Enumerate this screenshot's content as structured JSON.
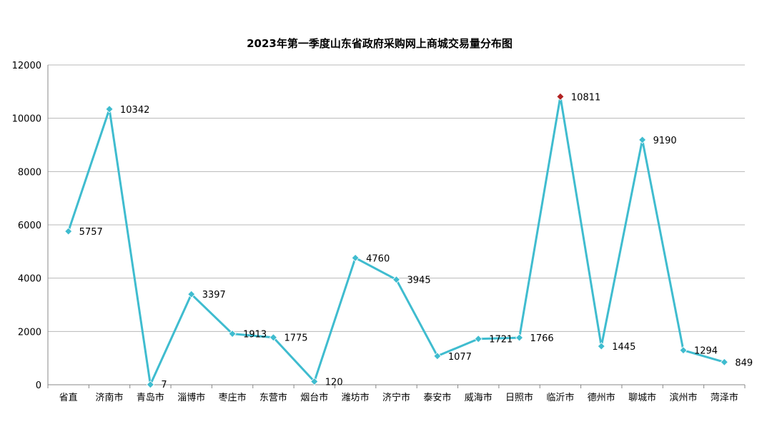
{
  "chart_data": {
    "type": "line",
    "title": "2023年第一季度山东省政府采购网上商城交易量分布图",
    "xlabel": "",
    "ylabel": "",
    "ylim": [
      0,
      12000
    ],
    "yticks": [
      0,
      2000,
      4000,
      6000,
      8000,
      10000,
      12000
    ],
    "grid": true,
    "legend": "none",
    "categories": [
      "省直",
      "济南市",
      "青岛市",
      "淄博市",
      "枣庄市",
      "东营市",
      "烟台市",
      "潍坊市",
      "济宁市",
      "泰安市",
      "威海市",
      "日照市",
      "临沂市",
      "德州市",
      "聊城市",
      "滨州市",
      "菏泽市"
    ],
    "series": [
      {
        "values": [
          5757,
          10342,
          7,
          3397,
          1913,
          1775,
          120,
          4760,
          3945,
          1077,
          1721,
          1766,
          10811,
          1445,
          9190,
          1294,
          849
        ],
        "data_labels": [
          "5757",
          "10342",
          "7",
          "3397",
          "1913",
          "1775",
          "120",
          "4760",
          "3945",
          "1077",
          "1721",
          "1766",
          "10811",
          "1445",
          "9190",
          "1294",
          "849"
        ]
      }
    ],
    "colors": {
      "line": "#3fbccf",
      "marker": "#3fbccf",
      "highlight_marker": "#b22222",
      "grid": "#b8b8b8"
    },
    "highlight_index": 12
  }
}
